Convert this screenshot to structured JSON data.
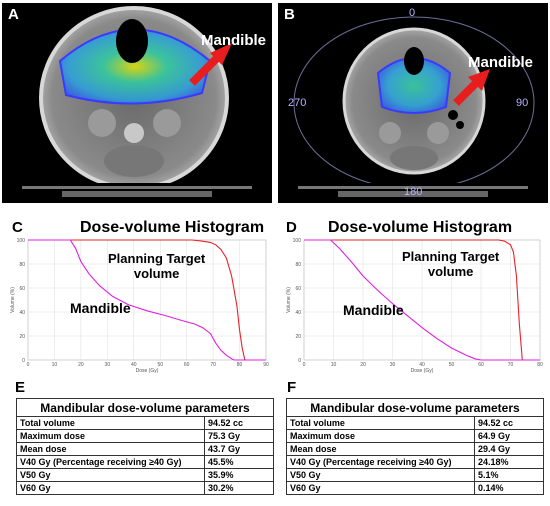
{
  "panels": {
    "a": {
      "letter": "A",
      "label": "Mandible"
    },
    "b": {
      "letter": "B",
      "label": "Mandible",
      "degrees": {
        "top": "0",
        "right": "90",
        "bottom": "180",
        "left": "270"
      }
    },
    "c": {
      "letter": "C",
      "title": "Dose-volume Histogram",
      "ptv_label_line1": "Planning Target",
      "ptv_label_line2": "volume",
      "mandible_label": "Mandible"
    },
    "d": {
      "letter": "D",
      "title": "Dose-volume Histogram",
      "ptv_label_line1": "Planning Target",
      "ptv_label_line2": "volume",
      "mandible_label": "Mandible"
    },
    "e": {
      "letter": "E"
    },
    "f": {
      "letter": "F"
    }
  },
  "colors": {
    "ptv": "#e8222a",
    "mandible": "#e020e0",
    "arrow": "#e81e1e"
  },
  "chart_data": [
    {
      "type": "line",
      "panel": "C",
      "title": "Dose-volume Histogram",
      "xlabel": "Dose (Gy)",
      "ylabel": "Volume (%)",
      "xlim": [
        0,
        90
      ],
      "ylim": [
        0,
        100
      ],
      "xticks": [
        "0",
        "10",
        "20",
        "30",
        "40",
        "50",
        "60",
        "70",
        "80",
        "90"
      ],
      "yticks": [
        "0",
        "20",
        "40",
        "60",
        "80",
        "100"
      ],
      "grid": true,
      "series": [
        {
          "name": "Planning Target volume",
          "color": "#e8222a",
          "x": [
            0,
            62,
            66,
            69,
            71,
            73,
            75,
            77,
            79,
            80,
            81,
            82,
            90
          ],
          "y": [
            100,
            100,
            99,
            98,
            96,
            92,
            85,
            70,
            45,
            25,
            10,
            0,
            0
          ]
        },
        {
          "name": "Mandible",
          "color": "#e020e0",
          "x": [
            0,
            16,
            18,
            20,
            23,
            27,
            32,
            38,
            45,
            52,
            58,
            63,
            66,
            69,
            71,
            73,
            75,
            77,
            78,
            90
          ],
          "y": [
            100,
            100,
            93,
            82,
            72,
            62,
            53,
            46,
            41,
            37,
            33,
            30,
            27,
            22,
            14,
            8,
            4,
            1,
            0,
            0
          ]
        }
      ]
    },
    {
      "type": "line",
      "panel": "D",
      "title": "Dose-volume Histogram",
      "xlabel": "Dose (Gy)",
      "ylabel": "Volume (%)",
      "xlim": [
        0,
        80
      ],
      "ylim": [
        0,
        100
      ],
      "xticks": [
        "0",
        "10",
        "20",
        "30",
        "40",
        "50",
        "60",
        "70",
        "80"
      ],
      "yticks": [
        "0",
        "20",
        "40",
        "60",
        "80",
        "100"
      ],
      "grid": true,
      "series": [
        {
          "name": "Planning Target volume",
          "color": "#e8222a",
          "x": [
            0,
            66,
            68,
            70,
            71,
            72,
            73,
            74,
            80
          ],
          "y": [
            100,
            100,
            99,
            96,
            90,
            70,
            30,
            0,
            0
          ]
        },
        {
          "name": "Mandible",
          "color": "#e020e0",
          "x": [
            0,
            9,
            12,
            16,
            20,
            25,
            30,
            35,
            40,
            45,
            50,
            55,
            58,
            60,
            80
          ],
          "y": [
            100,
            100,
            93,
            82,
            70,
            58,
            47,
            37,
            27,
            18,
            10,
            4,
            1,
            0,
            0
          ]
        }
      ]
    }
  ],
  "tables": {
    "e": {
      "title": "Mandibular  dose-volume parameters",
      "rows": [
        [
          "Total volume",
          "94.52 cc"
        ],
        [
          "Maximum dose",
          "75.3 Gy"
        ],
        [
          "Mean dose",
          "43.7 Gy"
        ],
        [
          "V40 Gy (Percentage receiving ≥40 Gy)",
          "45.5%"
        ],
        [
          "V50 Gy",
          "35.9%"
        ],
        [
          "V60 Gy",
          "30.2%"
        ]
      ]
    },
    "f": {
      "title": "Mandibular  dose-volume parameters",
      "rows": [
        [
          "Total volume",
          "94.52 cc"
        ],
        [
          "Maximum dose",
          "64.9 Gy"
        ],
        [
          "Mean dose",
          "29.4 Gy"
        ],
        [
          "V40 Gy (Percentage receiving ≥40 Gy)",
          "24.18%"
        ],
        [
          "V50 Gy",
          "5.1%"
        ],
        [
          "V60 Gy",
          "0.14%"
        ]
      ]
    }
  }
}
